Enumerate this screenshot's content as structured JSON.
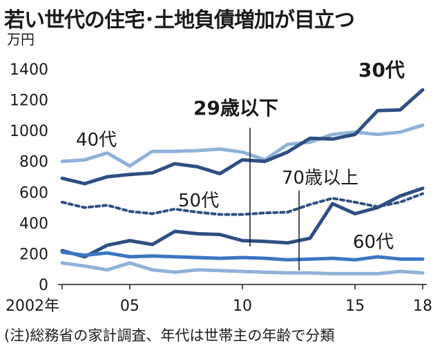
{
  "chart_data": {
    "type": "line",
    "title": "若い世代の住宅･土地負債増加が目立つ",
    "unit": "万円",
    "note": "(注)総務省の家計調査、年代は世帯主の年齢で分類",
    "x": [
      2002,
      2003,
      2004,
      2005,
      2006,
      2007,
      2008,
      2009,
      2010,
      2011,
      2012,
      2013,
      2014,
      2015,
      2016,
      2017,
      2018
    ],
    "x_ticks": [
      {
        "value": 2002,
        "label": "2002年"
      },
      {
        "value": 2005,
        "label": "05"
      },
      {
        "value": 2010,
        "label": "10"
      },
      {
        "value": 2015,
        "label": "15"
      },
      {
        "value": 2018,
        "label": "18"
      }
    ],
    "y_ticks": [
      0,
      200,
      400,
      600,
      800,
      1000,
      1200,
      1400
    ],
    "ylim": [
      0,
      1400
    ],
    "series": [
      {
        "name": "40代",
        "label": "40代",
        "color": "#8fb2d8",
        "dashed": false,
        "values": [
          800,
          810,
          855,
          770,
          865,
          865,
          870,
          880,
          860,
          810,
          910,
          925,
          975,
          990,
          975,
          990,
          1035
        ]
      },
      {
        "name": "30代",
        "label": "30代",
        "color": "#2e4f83",
        "dashed": false,
        "values": [
          690,
          655,
          700,
          715,
          725,
          785,
          765,
          720,
          810,
          800,
          860,
          950,
          945,
          975,
          1130,
          1135,
          1265
        ]
      },
      {
        "name": "50代",
        "label": "50代",
        "color": "#2e4f83",
        "dashed": true,
        "values": [
          535,
          500,
          515,
          475,
          460,
          490,
          470,
          455,
          455,
          465,
          470,
          520,
          560,
          535,
          505,
          535,
          590
        ]
      },
      {
        "name": "29歳以下",
        "label": "29歳以下",
        "color": "#2e4f83",
        "dashed": false,
        "values": [
          220,
          180,
          255,
          285,
          260,
          345,
          330,
          325,
          285,
          280,
          270,
          300,
          525,
          460,
          500,
          575,
          625
        ]
      },
      {
        "name": "60代",
        "label": "60代",
        "color": "#3a76c2",
        "dashed": false,
        "values": [
          210,
          190,
          205,
          180,
          185,
          180,
          175,
          170,
          175,
          170,
          160,
          165,
          170,
          160,
          180,
          165,
          165
        ]
      },
      {
        "name": "70歳以上",
        "label": "70歳以上",
        "color": "#8fb2d8",
        "dashed": false,
        "values": [
          140,
          120,
          95,
          140,
          95,
          80,
          95,
          90,
          85,
          80,
          75,
          75,
          70,
          70,
          70,
          85,
          75
        ]
      }
    ]
  }
}
